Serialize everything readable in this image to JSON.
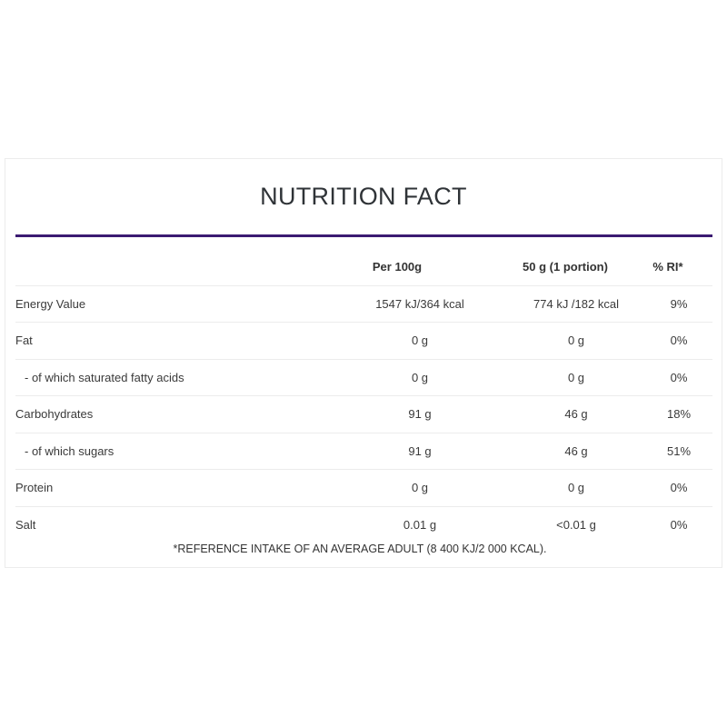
{
  "title": "NUTRITION FACT",
  "colors": {
    "divider": "#3b1b72"
  },
  "table": {
    "headers": {
      "per100": "Per 100g",
      "portion": "50 g (1 portion)",
      "ri": "% RI*"
    },
    "rows": [
      {
        "label": "Energy Value",
        "per100": "1547 kJ/364 kcal",
        "portion": "774 kJ /182 kcal",
        "ri": "9%"
      },
      {
        "label": "Fat",
        "per100": "0 g",
        "portion": "0 g",
        "ri": "0%"
      },
      {
        "label": "- of which saturated fatty acids",
        "per100": "0 g",
        "portion": "0 g",
        "ri": "0%"
      },
      {
        "label": "Carbohydrates",
        "per100": "91 g",
        "portion": "46 g",
        "ri": "18%"
      },
      {
        "label": "- of which sugars",
        "per100": "91 g",
        "portion": "46 g",
        "ri": "51%"
      },
      {
        "label": "Protein",
        "per100": "0 g",
        "portion": "0 g",
        "ri": "0%"
      },
      {
        "label": "Salt",
        "per100": "0.01 g",
        "portion": "<0.01 g",
        "ri": "0%"
      }
    ]
  },
  "footnote": "*REFERENCE INTAKE OF AN AVERAGE ADULT (8 400 KJ/2 000 KCAL)."
}
